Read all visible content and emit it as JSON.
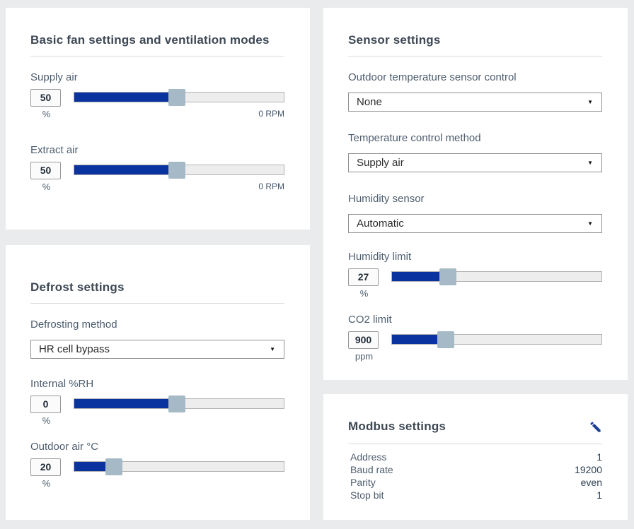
{
  "theme": {
    "page_bg": "#e9ebec",
    "card_bg": "#ffffff",
    "accent_blue": "#0a33a0",
    "handle_gray": "#a6b9c6",
    "heading_color": "#3d4854",
    "label_color": "#4d5d6e",
    "icon_blue": "#1d3e96"
  },
  "icons": {
    "select_arrow": "▼",
    "edit": "pencil-icon"
  },
  "panels": {
    "fan": {
      "title": "Basic fan settings and ventilation modes",
      "sliders": [
        {
          "label": "Supply air",
          "value": "50",
          "unit": "%",
          "right_label": "0 RPM",
          "fill_pct": 49
        },
        {
          "label": "Extract air",
          "value": "50",
          "unit": "%",
          "right_label": "0 RPM",
          "fill_pct": 49
        }
      ]
    },
    "defrost": {
      "title": "Defrost settings",
      "selects": [
        {
          "label": "Defrosting method",
          "value": "HR cell bypass"
        }
      ],
      "sliders": [
        {
          "label": "Internal %RH",
          "value": "0",
          "unit": "%",
          "fill_pct": 49
        },
        {
          "label": "Outdoor air °C",
          "value": "20",
          "unit": "%",
          "fill_pct": 19
        }
      ]
    },
    "sensor": {
      "title": "Sensor settings",
      "selects": [
        {
          "label": "Outdoor temperature sensor control",
          "value": "None"
        },
        {
          "label": "Temperature control method",
          "value": "Supply air"
        },
        {
          "label": "Humidity sensor",
          "value": "Automatic"
        }
      ],
      "sliders": [
        {
          "label": "Humidity limit",
          "value": "27",
          "unit": "%",
          "fill_pct": 27
        },
        {
          "label": "CO2 limit",
          "value": "900",
          "unit": "ppm",
          "fill_pct": 26
        }
      ]
    },
    "modbus": {
      "title": "Modbus settings",
      "rows": [
        {
          "label": "Address",
          "value": "1"
        },
        {
          "label": "Baud rate",
          "value": "19200"
        },
        {
          "label": "Parity",
          "value": "even"
        },
        {
          "label": "Stop bit",
          "value": "1"
        }
      ]
    }
  }
}
